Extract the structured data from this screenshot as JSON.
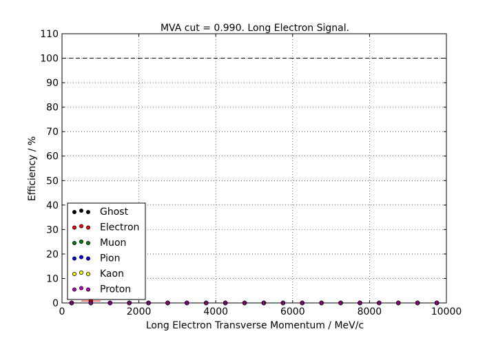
{
  "chart_data": {
    "type": "scatter",
    "title": "MVA cut = 0.990. Long Electron Signal.",
    "xlabel": "Long Electron Transverse Momentum / MeV/c",
    "ylabel": "Efficiency / %",
    "xlim": [
      0,
      10000
    ],
    "ylim": [
      0,
      110
    ],
    "xticks": [
      0,
      2000,
      4000,
      6000,
      8000,
      10000
    ],
    "yticks": [
      0,
      10,
      20,
      30,
      40,
      50,
      60,
      70,
      80,
      90,
      100,
      110
    ],
    "grid": true,
    "reference_line_y": 100,
    "legend_position": "lower-left",
    "x": [
      250,
      750,
      1250,
      1750,
      2250,
      2750,
      3250,
      3750,
      4250,
      4750,
      5250,
      5750,
      6250,
      6750,
      7250,
      7750,
      8250,
      8750,
      9250,
      9750
    ],
    "series": [
      {
        "name": "Ghost",
        "color": "#000000",
        "values": [
          0,
          0,
          0,
          0,
          0,
          0,
          0,
          0,
          0,
          0,
          0,
          0,
          0,
          0,
          0,
          0,
          0,
          0,
          0,
          0
        ]
      },
      {
        "name": "Electron",
        "color": "#ff0000",
        "values": [
          0,
          0.8,
          0,
          0,
          0,
          0,
          0,
          0,
          0,
          0,
          0,
          0,
          0,
          0,
          0,
          0,
          0,
          0,
          0,
          0
        ],
        "xerr": 250,
        "yerr": 0.8
      },
      {
        "name": "Muon",
        "color": "#008000",
        "values": [
          0,
          0,
          0,
          0,
          0,
          0,
          0,
          0,
          0,
          0,
          0,
          0,
          0,
          0,
          0,
          0,
          0,
          0,
          0,
          0
        ]
      },
      {
        "name": "Pion",
        "color": "#0000ff",
        "values": [
          0,
          0,
          0,
          0,
          0,
          0,
          0,
          0,
          0,
          0,
          0,
          0,
          0,
          0,
          0,
          0,
          0,
          0,
          0,
          0
        ]
      },
      {
        "name": "Kaon",
        "color": "#ffff00",
        "values": [
          0,
          0,
          0,
          0,
          0,
          0,
          0,
          0,
          0,
          0,
          0,
          0,
          0,
          0,
          0,
          0,
          0,
          0,
          0,
          0
        ]
      },
      {
        "name": "Proton",
        "color": "#bf00bf",
        "values": [
          0,
          0,
          0,
          0,
          0,
          0,
          0,
          0,
          0,
          0,
          0,
          0,
          0,
          0,
          0,
          0,
          0,
          0,
          0,
          0
        ]
      }
    ]
  }
}
